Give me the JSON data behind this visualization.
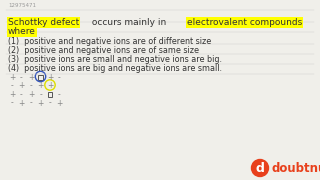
{
  "bg_color": "#f0efea",
  "title_id": "12975471",
  "t1": "Schottky defect",
  "t2": " occurs mainly in ",
  "t3": "electrovalent compounds",
  "t4": "where",
  "options": [
    "(1)  positive and negative ions are of different size",
    "(2)  positive and negative ions are of same size",
    "(3)  positive ions are small and negative ions are big.",
    "(4)  positive ions are big and negative ions are small."
  ],
  "logo_color": "#e8401c",
  "logo_text": "doubtnut",
  "highlight_color": "#ffff00",
  "text_color": "#333333",
  "grid_color": "#888888",
  "blue_circle_color": "#3355bb",
  "yellow_circle_color": "#dddd00"
}
